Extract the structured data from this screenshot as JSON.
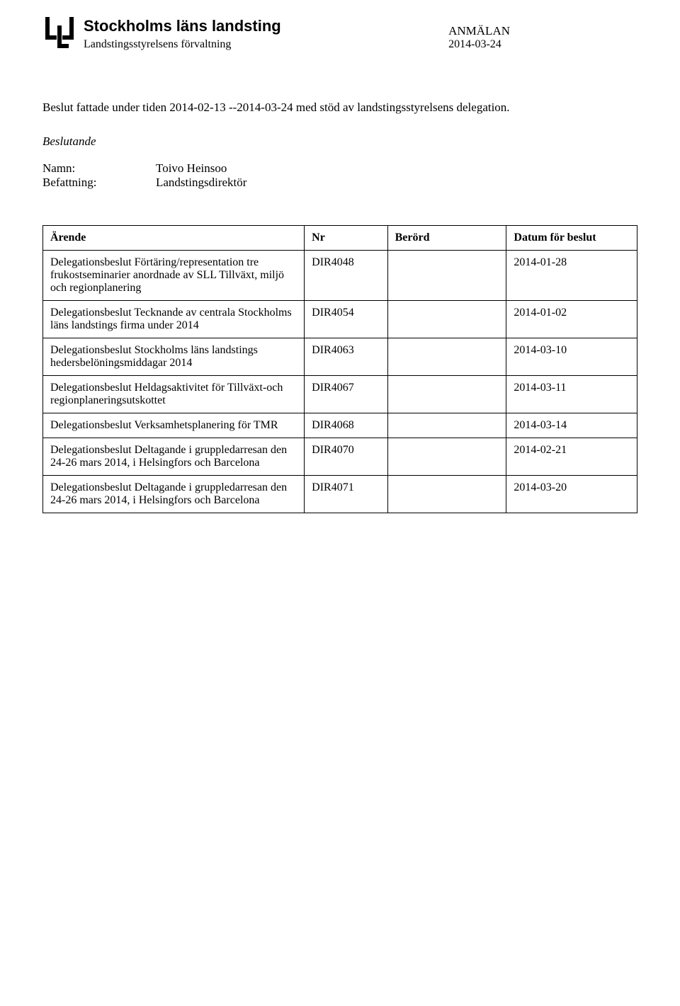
{
  "header": {
    "org_name": "Stockholms läns landsting",
    "org_sub": "Landstingsstyrelsens förvaltning",
    "doc_type": "ANMÄLAN",
    "doc_date": "2014-03-24"
  },
  "intro": "Beslut fattade under tiden 2014-02-13  --2014-03-24  med stöd av landstingsstyrelsens delegation.",
  "beslutande": {
    "heading": "Beslutande",
    "name_key": "Namn:",
    "name_val": "Toivo Heinsoo",
    "title_key": "Befattning:",
    "title_val": "Landstingsdirektör"
  },
  "table": {
    "headers": {
      "arende": "Ärende",
      "nr": "Nr",
      "berord": "Berörd",
      "datum": "Datum för beslut"
    },
    "rows": [
      {
        "arende": "Delegationsbeslut Förtäring/representation tre frukostseminarier anordnade av SLL Tillväxt, miljö och regionplanering",
        "nr": "DIR4048",
        "berord": "",
        "datum": "2014-01-28"
      },
      {
        "arende": "Delegationsbeslut Tecknande av centrala Stockholms läns landstings firma under 2014",
        "nr": "DIR4054",
        "berord": "",
        "datum": "2014-01-02"
      },
      {
        "arende": "Delegationsbeslut Stockholms läns landstings hedersbelöningsmiddagar 2014",
        "nr": "DIR4063",
        "berord": "",
        "datum": "2014-03-10"
      },
      {
        "arende": "Delegationsbeslut Heldagsaktivitet för Tillväxt-och regionplaneringsutskottet",
        "nr": "DIR4067",
        "berord": "",
        "datum": "2014-03-11"
      },
      {
        "arende": "Delegationsbeslut Verksamhetsplanering för TMR",
        "nr": "DIR4068",
        "berord": "",
        "datum": "2014-03-14"
      },
      {
        "arende": "Delegationsbeslut Deltagande i gruppledarresan den 24-26 mars 2014, i Helsingfors och Barcelona",
        "nr": "DIR4070",
        "berord": "",
        "datum": "2014-02-21"
      },
      {
        "arende": "Delegationsbeslut Deltagande i gruppledarresan den 24-26 mars 2014, i Helsingfors och Barcelona",
        "nr": "DIR4071",
        "berord": "",
        "datum": "2014-03-20"
      }
    ]
  },
  "style": {
    "text_color": "#000000",
    "background_color": "#ffffff",
    "border_color": "#000000",
    "org_name_fontsize": 22,
    "body_fontsize": 17,
    "table_fontsize": 16
  }
}
